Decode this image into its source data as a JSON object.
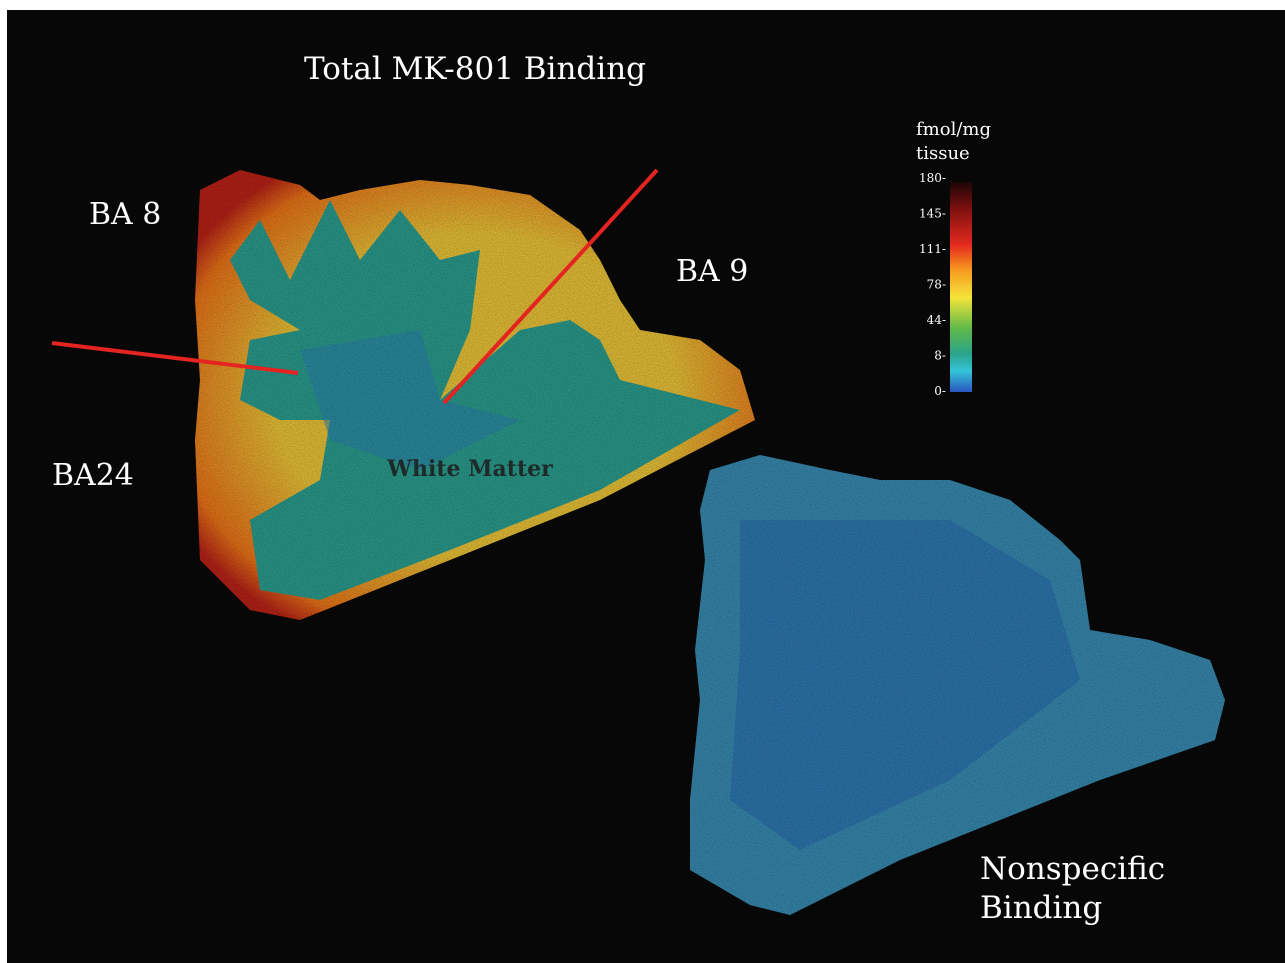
{
  "title": "Total MK-801 Binding",
  "regions": [
    "BA 8",
    "BA 9",
    "BA24"
  ],
  "white_matter": "White Matter",
  "nonspecific": [
    "Nonspecific",
    "Binding"
  ],
  "colorbar": {
    "title": [
      "fmol/mg",
      "tissue"
    ],
    "ticks": [
      "180-",
      "145-",
      "111-",
      "78-",
      "44-",
      "8-",
      "0-"
    ]
  }
}
